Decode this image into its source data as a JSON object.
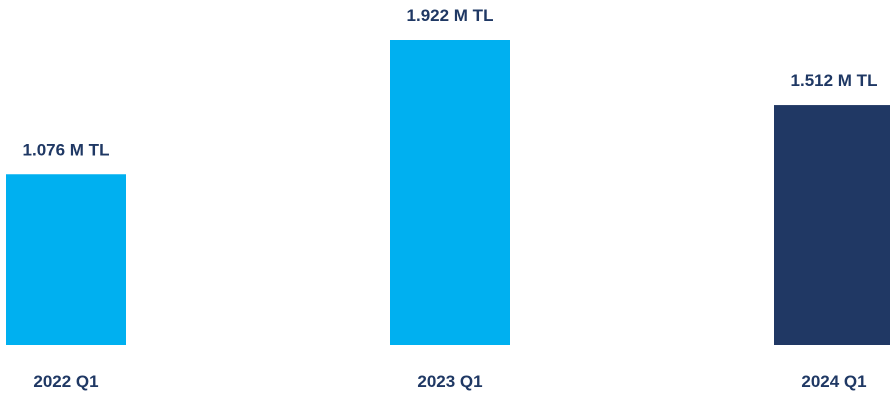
{
  "chart_data": {
    "type": "bar",
    "categories": [
      "2022 Q1",
      "2023 Q1",
      "2024 Q1"
    ],
    "values": [
      1.076,
      1.922,
      1.512
    ],
    "value_labels": [
      "1.076 M TL",
      "1.922 M TL",
      "1.512 M TL"
    ],
    "unit": "M TL",
    "title": "",
    "xlabel": "",
    "ylabel": "",
    "ylim": [
      0,
      1.922
    ],
    "grid": false,
    "legend": "none",
    "bar_colors": [
      "#00b0f0",
      "#00b0f0",
      "#203864"
    ],
    "label_color": "#1f3864"
  }
}
